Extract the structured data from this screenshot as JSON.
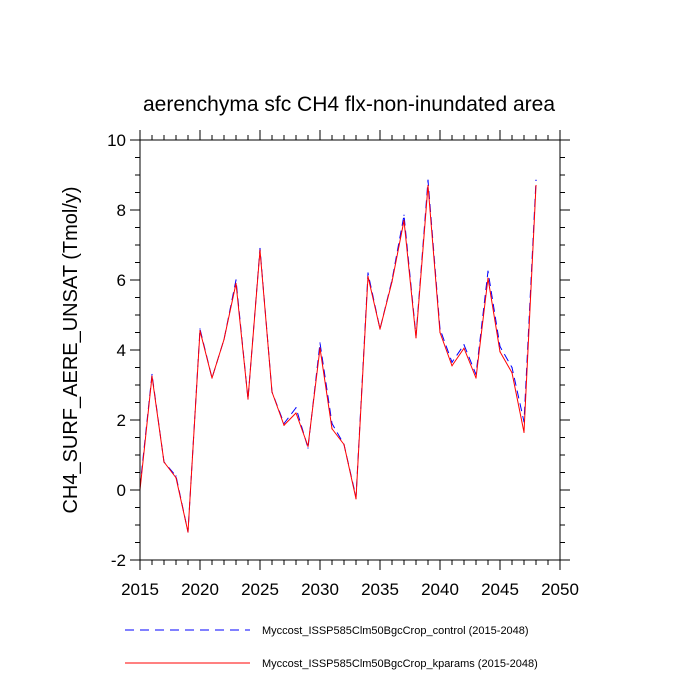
{
  "chart_data": {
    "type": "line",
    "title": "aerenchyma sfc CH4 flx-non-inundated area",
    "xlabel": "",
    "ylabel": "CH4_SURF_AERE_UNSAT  (Tmol/y)",
    "xlim": [
      2015,
      2050
    ],
    "ylim": [
      -2,
      10
    ],
    "x_ticks": [
      2015,
      2020,
      2025,
      2030,
      2035,
      2040,
      2045,
      2050
    ],
    "y_ticks": [
      -2,
      0,
      2,
      4,
      6,
      8,
      10
    ],
    "x": [
      2015,
      2016,
      2017,
      2018,
      2019,
      2020,
      2021,
      2022,
      2023,
      2024,
      2025,
      2026,
      2027,
      2028,
      2029,
      2030,
      2031,
      2032,
      2033,
      2034,
      2035,
      2036,
      2037,
      2038,
      2039,
      2040,
      2041,
      2042,
      2043,
      2044,
      2045,
      2046,
      2047,
      2048
    ],
    "series": [
      {
        "name": "Myccost_ISSP585Clm50BgcCrop_control (2015-2048)",
        "color": "#0000ff",
        "style": "dashed",
        "values": [
          0.1,
          3.3,
          0.8,
          0.4,
          -1.2,
          4.6,
          3.2,
          4.3,
          6.0,
          2.6,
          6.9,
          2.8,
          1.9,
          2.35,
          1.2,
          4.2,
          1.9,
          1.3,
          -0.2,
          6.2,
          4.6,
          6.0,
          7.85,
          4.4,
          8.85,
          4.6,
          3.65,
          4.15,
          3.3,
          6.25,
          4.1,
          3.5,
          1.95,
          8.85
        ]
      },
      {
        "name": "Myccost_ISSP585Clm50BgcCrop_kparams (2015-2048)",
        "color": "#ff0000",
        "style": "solid",
        "values": [
          0.0,
          3.25,
          0.8,
          0.35,
          -1.2,
          4.55,
          3.2,
          4.3,
          5.9,
          2.6,
          6.85,
          2.8,
          1.85,
          2.2,
          1.25,
          4.05,
          1.75,
          1.3,
          -0.25,
          6.1,
          4.6,
          5.95,
          7.7,
          4.35,
          8.7,
          4.5,
          3.55,
          4.05,
          3.2,
          6.05,
          3.95,
          3.35,
          1.65,
          8.7
        ]
      }
    ]
  }
}
